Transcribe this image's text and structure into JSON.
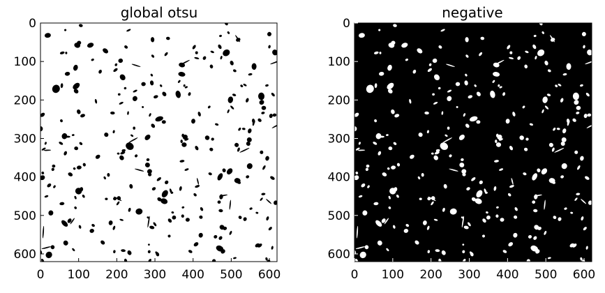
{
  "figure": {
    "panels": [
      {
        "title": "global otsu",
        "background": "#ffffff",
        "blob_color": "#000000",
        "x_ticks": [
          "0",
          "100",
          "200",
          "300",
          "400",
          "500",
          "600"
        ],
        "y_ticks": [
          "0",
          "100",
          "200",
          "300",
          "400",
          "500",
          "600"
        ]
      },
      {
        "title": "negative",
        "background": "#000000",
        "blob_color": "#ffffff",
        "x_ticks": [
          "0",
          "100",
          "200",
          "300",
          "400",
          "500",
          "600"
        ],
        "y_ticks": [
          "0",
          "100",
          "200",
          "300",
          "400",
          "500",
          "600"
        ]
      }
    ]
  }
}
